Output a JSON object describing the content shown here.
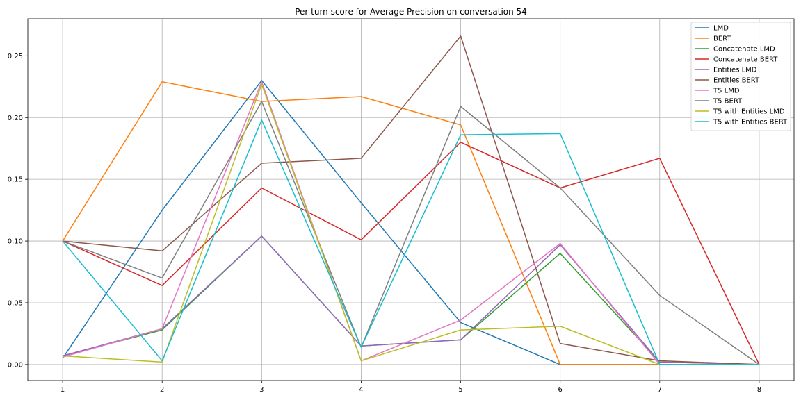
{
  "chart_data": {
    "type": "line",
    "title": "Per turn score for Average Precision on conversation 54",
    "xlabel": "",
    "ylabel": "",
    "x": [
      1,
      2,
      3,
      4,
      5,
      6,
      7,
      8
    ],
    "xlim": [
      0.65,
      8.35
    ],
    "ylim": [
      -0.013,
      0.28
    ],
    "xticks": [
      "1",
      "2",
      "3",
      "4",
      "5",
      "6",
      "7",
      "8"
    ],
    "yticks": [
      0.0,
      0.05,
      0.1,
      0.15,
      0.2,
      0.25
    ],
    "ytick_labels": [
      "0.00",
      "0.05",
      "0.10",
      "0.15",
      "0.20",
      "0.25"
    ],
    "grid": true,
    "legend_position": "top-right",
    "series": [
      {
        "name": "LMD",
        "color": "#1f77b4",
        "values": [
          0.005,
          0.125,
          0.23,
          0.131,
          0.034,
          0.0,
          0.0,
          0.0
        ]
      },
      {
        "name": "BERT",
        "color": "#ff7f0e",
        "values": [
          0.1,
          0.229,
          0.213,
          0.217,
          0.194,
          0.0,
          0.0,
          0.0
        ]
      },
      {
        "name": "Concatenate LMD",
        "color": "#2ca02c",
        "values": [
          0.007,
          0.028,
          0.104,
          0.015,
          0.02,
          0.09,
          0.002,
          0.0
        ]
      },
      {
        "name": "Concatenate BERT",
        "color": "#d62728",
        "values": [
          0.1,
          0.064,
          0.143,
          0.101,
          0.18,
          0.143,
          0.167,
          0.0
        ]
      },
      {
        "name": "Entities LMD",
        "color": "#9467bd",
        "values": [
          0.007,
          0.029,
          0.104,
          0.015,
          0.02,
          0.097,
          0.002,
          0.0
        ]
      },
      {
        "name": "Entities BERT",
        "color": "#8c564b",
        "values": [
          0.1,
          0.092,
          0.163,
          0.167,
          0.266,
          0.017,
          0.003,
          0.0
        ]
      },
      {
        "name": "T5 LMD",
        "color": "#e377c2",
        "values": [
          0.006,
          0.029,
          0.229,
          0.003,
          0.036,
          0.098,
          0.0,
          0.0
        ]
      },
      {
        "name": "T5 BERT",
        "color": "#7f7f7f",
        "values": [
          0.1,
          0.07,
          0.213,
          0.014,
          0.209,
          0.143,
          0.056,
          0.0
        ]
      },
      {
        "name": "T5 with Entities LMD",
        "color": "#bcbd22",
        "values": [
          0.007,
          0.002,
          0.227,
          0.003,
          0.028,
          0.031,
          0.0,
          0.0
        ]
      },
      {
        "name": "T5 with Entities BERT",
        "color": "#17becf",
        "values": [
          0.1,
          0.003,
          0.198,
          0.014,
          0.186,
          0.187,
          0.0,
          0.0
        ]
      }
    ]
  }
}
